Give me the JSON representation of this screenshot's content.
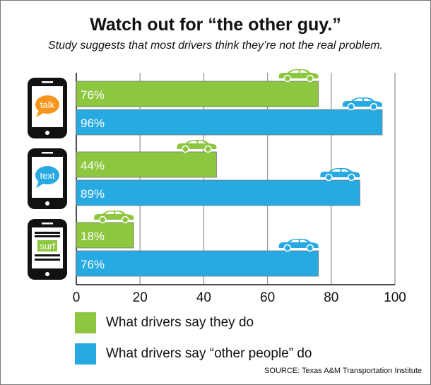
{
  "chart_data": {
    "type": "bar",
    "orientation": "horizontal",
    "title": "Watch out for “the other guy.”",
    "subtitle": "Study suggests that most drivers think they’re not the real problem.",
    "categories": [
      "talk",
      "text",
      "surf"
    ],
    "series": [
      {
        "name": "What drivers say they do",
        "color": "#8dc63f",
        "values": [
          76,
          44,
          18
        ],
        "labels": [
          "76%",
          "44%",
          "18%"
        ]
      },
      {
        "name": "What drivers say “other people” do",
        "color": "#27aae1",
        "values": [
          96,
          89,
          76
        ],
        "labels": [
          "96%",
          "89%",
          "76%"
        ]
      }
    ],
    "xlim": [
      0,
      100
    ],
    "xticks": [
      0,
      20,
      40,
      60,
      80,
      100
    ],
    "xtick_labels": [
      "0",
      "20",
      "40",
      "60",
      "80",
      "100"
    ],
    "grid": true,
    "legend_position": "bottom-left",
    "icon_colors": {
      "talk": "#f7941d",
      "text": "#27aae1",
      "surf": "#8dc63f"
    }
  },
  "source": "SOURCE: Texas A&M Transportation Institute"
}
